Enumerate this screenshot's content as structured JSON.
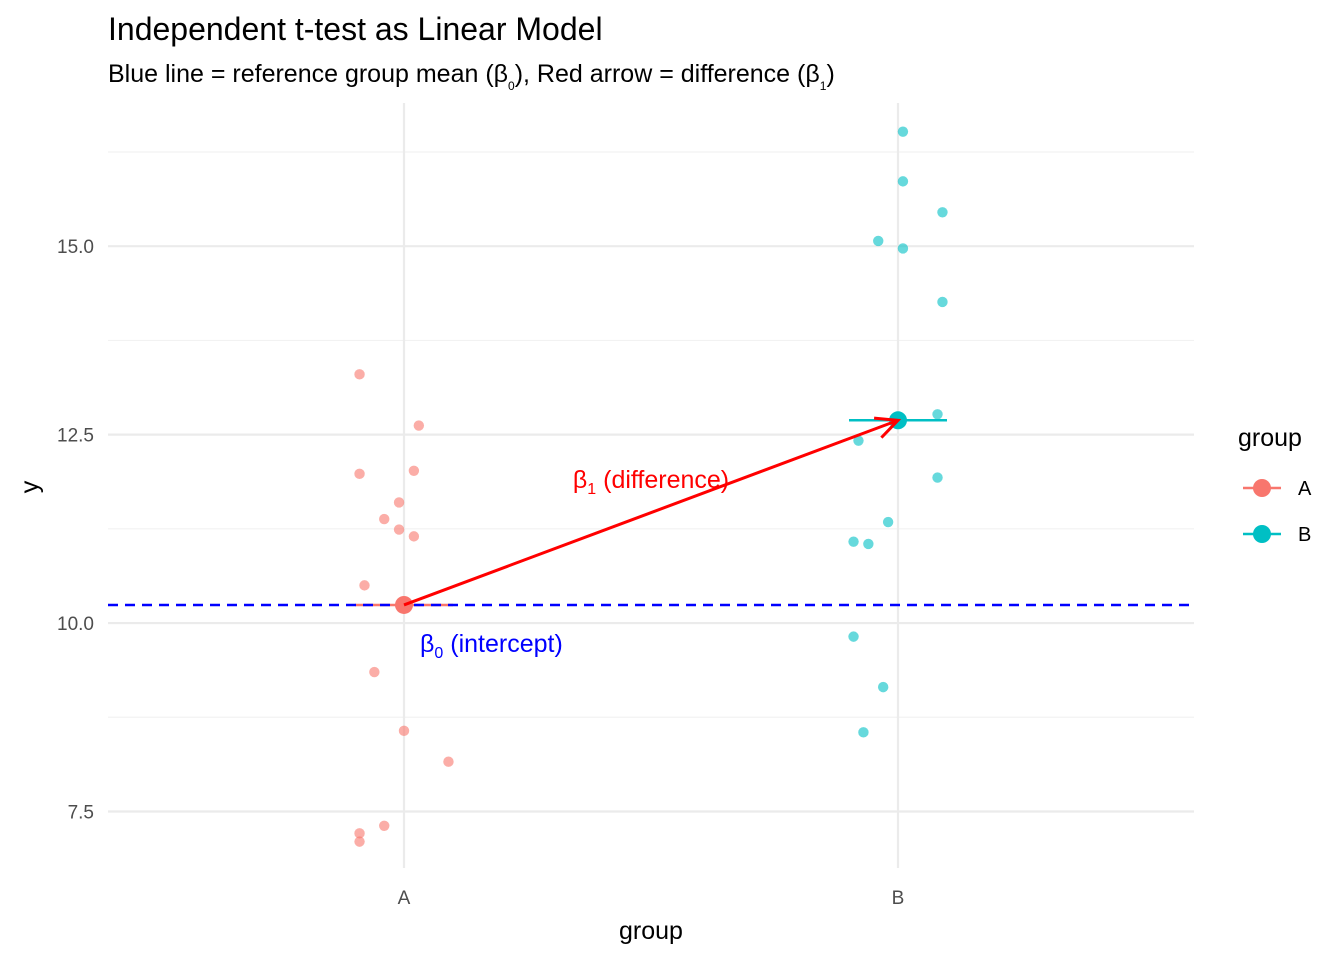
{
  "chart_data": {
    "type": "scatter",
    "title": "Independent t-test as Linear Model",
    "subtitle": {
      "part1": "Blue line = reference group mean (β",
      "sub1": "0",
      "part2": "), Red arrow = difference (β",
      "sub2": "1",
      "part3": ")"
    },
    "xlabel": "group",
    "ylabel": "y",
    "categories": [
      "A",
      "B"
    ],
    "ylim": [
      6.75,
      16.9
    ],
    "yticks": [
      7.5,
      10.0,
      12.5,
      15.0
    ],
    "ytick_labels": [
      "7.5",
      "10.0",
      "12.5",
      "15.0"
    ],
    "grid": true,
    "legend": {
      "title": "group",
      "position": "right",
      "entries": [
        "A",
        "B"
      ]
    },
    "colors": {
      "A": "#F8766D",
      "B": "#00BFC4",
      "intercept_line": "#0000FF",
      "arrow": "#FF0000",
      "grid": "#EBEBEB"
    },
    "series": [
      {
        "name": "A",
        "points": [
          {
            "x": -0.09,
            "y": 13.3
          },
          {
            "x": 0.03,
            "y": 12.62
          },
          {
            "x": -0.09,
            "y": 11.98
          },
          {
            "x": 0.02,
            "y": 12.02
          },
          {
            "x": -0.01,
            "y": 11.6
          },
          {
            "x": -0.04,
            "y": 11.38
          },
          {
            "x": -0.01,
            "y": 11.24
          },
          {
            "x": 0.02,
            "y": 11.15
          },
          {
            "x": -0.08,
            "y": 10.5
          },
          {
            "x": -0.06,
            "y": 9.35
          },
          {
            "x": 0.0,
            "y": 8.57
          },
          {
            "x": 0.09,
            "y": 8.16
          },
          {
            "x": -0.04,
            "y": 7.31
          },
          {
            "x": -0.09,
            "y": 7.21
          },
          {
            "x": -0.09,
            "y": 7.1
          }
        ]
      },
      {
        "name": "B",
        "points": [
          {
            "x": 0.01,
            "y": 16.52
          },
          {
            "x": 0.01,
            "y": 15.86
          },
          {
            "x": 0.09,
            "y": 15.45
          },
          {
            "x": -0.04,
            "y": 15.07
          },
          {
            "x": 0.01,
            "y": 14.97
          },
          {
            "x": 0.09,
            "y": 14.26
          },
          {
            "x": 0.08,
            "y": 12.77
          },
          {
            "x": -0.08,
            "y": 12.42
          },
          {
            "x": 0.08,
            "y": 11.93
          },
          {
            "x": -0.02,
            "y": 11.34
          },
          {
            "x": -0.09,
            "y": 11.08
          },
          {
            "x": -0.06,
            "y": 11.05
          },
          {
            "x": -0.09,
            "y": 9.82
          },
          {
            "x": -0.03,
            "y": 9.15
          },
          {
            "x": -0.07,
            "y": 8.55
          }
        ]
      }
    ],
    "group_means": {
      "A": 10.24,
      "B": 12.69
    },
    "intercept": 10.24,
    "difference": 2.45,
    "annotations": {
      "beta1": {
        "symbol": "β",
        "sub": "1",
        "text": " (difference)"
      },
      "beta0": {
        "symbol": "β",
        "sub": "0",
        "text": " (intercept)"
      }
    }
  }
}
